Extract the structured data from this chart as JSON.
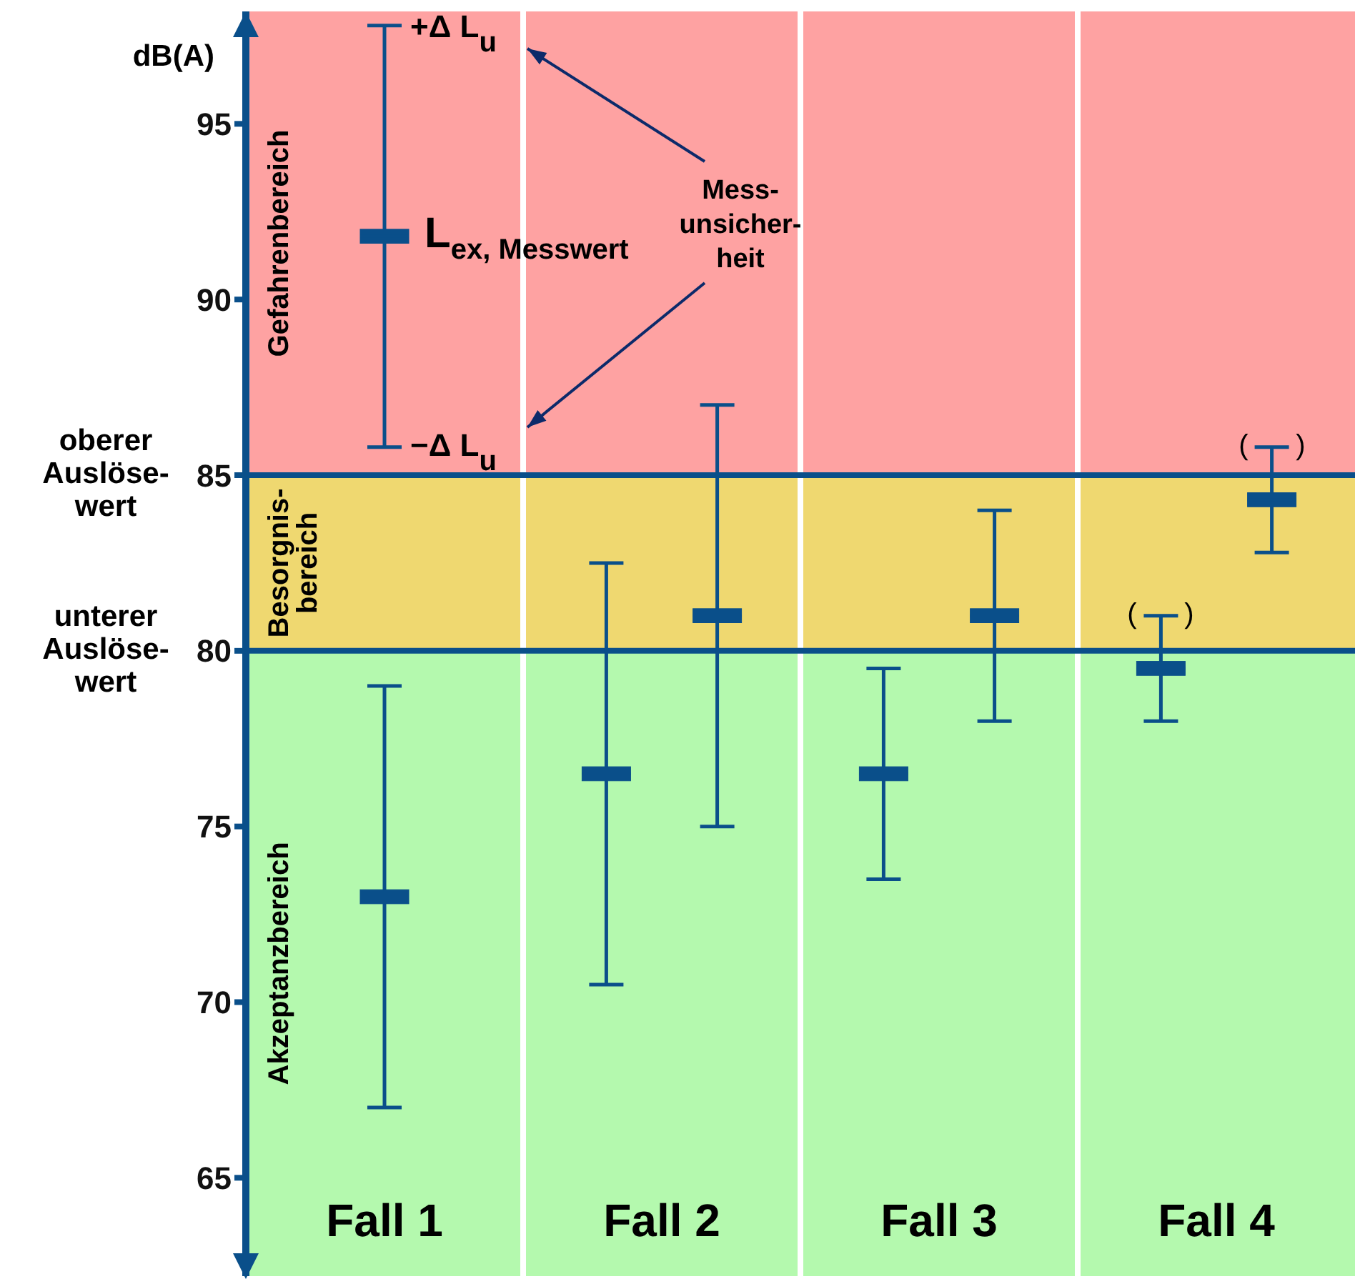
{
  "chart_data": {
    "type": "box",
    "ylabel": "dB(A)",
    "categories": [
      null,
      null,
      "Fall 1",
      null,
      null,
      null,
      null,
      "Fall 2",
      null,
      null,
      null,
      null,
      "Fall 3",
      null,
      null,
      null,
      null,
      "Fall 4",
      null,
      null
    ],
    "series": [
      {
        "color": "#0a4f8a",
        "boxes": [
          null,
          null,
          {
            "low": 67,
            "q1": 72.8,
            "median": 73,
            "q3": 73.2,
            "high": 79
          },
          null,
          null,
          null,
          {
            "low": 70.5,
            "q1": 76.3,
            "median": 76.5,
            "q3": 76.7,
            "high": 82.5
          },
          null,
          null,
          null,
          null,
          {
            "low": 73.5,
            "q1": 76.3,
            "median": 76.5,
            "q3": 76.7,
            "high": 79.5
          },
          null,
          null,
          null,
          null,
          {
            "low": 78,
            "q1": 79.3,
            "median": 79.5,
            "q3": 79.7,
            "high": 81
          },
          null,
          null,
          null
        ]
      },
      {
        "color": "#0a4f8a",
        "boxes": [
          null,
          null,
          {
            "low": 85.8,
            "q1": 91.6,
            "median": 91.8,
            "q3": 92,
            "high": 97.8
          },
          null,
          null,
          null,
          null,
          null,
          {
            "low": 75,
            "q1": 80.8,
            "median": 81,
            "q3": 81.2,
            "high": 87
          },
          null,
          null,
          null,
          null,
          {
            "low": 78,
            "q1": 80.8,
            "median": 81,
            "q3": 81.2,
            "high": 84
          },
          null,
          null,
          null,
          null,
          {
            "low": 82.8,
            "q1": 84.1,
            "median": 84.3,
            "q3": 84.5,
            "high": 85.8
          },
          null
        ]
      }
    ],
    "ylim": [
      62.2,
      98.2
    ],
    "yticks": [
      65,
      70,
      75,
      80,
      85,
      90,
      95
    ],
    "ref_lines": [
      {
        "axis": "y",
        "value": 85,
        "label": "oberer\nAuslöse-\nwert",
        "color": "#0a4f8a"
      },
      {
        "axis": "y",
        "value": 80,
        "label": "unterer\nAuslöse-\nwert",
        "color": "#0a4f8a"
      }
    ],
    "bands": [
      {
        "axis": "y",
        "from": 85,
        "to": 98.2,
        "label": "Gefahrenbereich",
        "color": "#fea2a2"
      },
      {
        "axis": "y",
        "from": 80,
        "to": 85,
        "label": "Besorgnis-\nbereich",
        "color": "#efd870"
      },
      {
        "axis": "y",
        "from": 62.2,
        "to": 80,
        "label": "Akzeptanzbereich",
        "color": "#b4f9ae"
      }
    ],
    "annotations": [
      "+Δ L$_{u}$",
      "−Δ L$_{u}$",
      "L$_{ex, Messwert}$",
      "Mess-\nunsicher-\nheit",
      "(      )",
      "(      )"
    ]
  }
}
